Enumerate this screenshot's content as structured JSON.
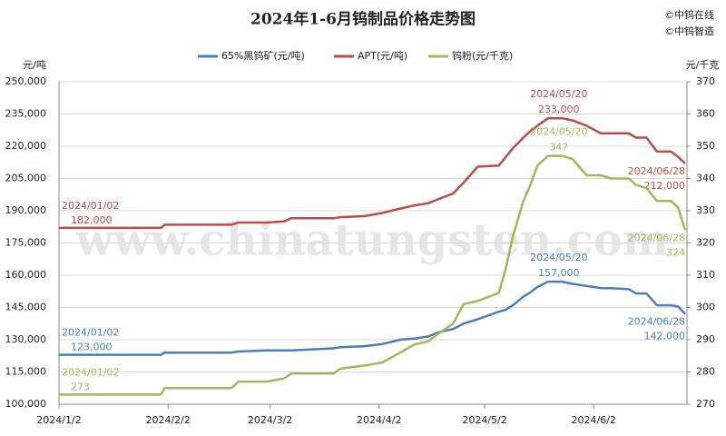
{
  "chart_data": {
    "type": "line",
    "title": "2024年1-6月钨制品价格走势图",
    "credits": [
      "©中钨在线",
      "©中钨智造"
    ],
    "watermark": "www.chinatungsten.com",
    "ylabel": "元/吨",
    "y2label": "元/千克",
    "x": [
      "2024/1/2",
      "2024/1/31",
      "2024/2/1",
      "2024/2/20",
      "2024/2/22",
      "2024/3/1",
      "2024/3/6",
      "2024/3/8",
      "2024/3/20",
      "2024/3/22",
      "2024/3/29",
      "2024/4/3",
      "2024/4/8",
      "2024/4/12",
      "2024/4/16",
      "2024/4/19",
      "2024/4/23",
      "2024/4/26",
      "2024/4/30",
      "2024/5/6",
      "2024/5/8",
      "2024/5/10",
      "2024/5/13",
      "2024/5/15",
      "2024/5/17",
      "2024/5/20",
      "2024/5/24",
      "2024/5/27",
      "2024/5/31",
      "2024/6/4",
      "2024/6/7",
      "2024/6/12",
      "2024/6/14",
      "2024/6/17",
      "2024/6/20",
      "2024/6/24",
      "2024/6/26",
      "2024/6/28"
    ],
    "xlim": [
      "2024/1/2",
      "2024/6/28"
    ],
    "xticks": [
      "2024/1/2",
      "2024/2/2",
      "2024/3/2",
      "2024/4/2",
      "2024/5/2",
      "2024/6/2"
    ],
    "ylim": [
      100000,
      250000
    ],
    "yticks": [
      {
        "value": 100000,
        "label": "100,000"
      },
      {
        "value": 115000,
        "label": "115,000"
      },
      {
        "value": 130000,
        "label": "130,000"
      },
      {
        "value": 145000,
        "label": "145,000"
      },
      {
        "value": 160000,
        "label": "160,000"
      },
      {
        "value": 175000,
        "label": "175,000"
      },
      {
        "value": 190000,
        "label": "190,000"
      },
      {
        "value": 205000,
        "label": "205,000"
      },
      {
        "value": 220000,
        "label": "220,000"
      },
      {
        "value": 235000,
        "label": "235,000"
      },
      {
        "value": 250000,
        "label": "250,000"
      }
    ],
    "y2lim": [
      270,
      370
    ],
    "y2ticks": [
      270,
      280,
      290,
      300,
      310,
      320,
      330,
      340,
      350,
      360,
      370
    ],
    "grid": true,
    "series": [
      {
        "name": "65%黑钨矿(元/吨)",
        "color": "#4a7ebb",
        "values": [
          123000,
          123000,
          124000,
          124000,
          124500,
          125000,
          125000,
          125000,
          126000,
          126500,
          127000,
          128000,
          130000,
          130500,
          131500,
          133500,
          135000,
          137500,
          139500,
          143000,
          144000,
          146000,
          150000,
          152000,
          154500,
          157000,
          157000,
          156000,
          155000,
          154000,
          154000,
          153500,
          151500,
          151500,
          146000,
          146000,
          145500,
          142000
        ],
        "value_labels": [
          "123,000",
          null,
          null,
          null,
          null,
          null,
          null,
          null,
          null,
          null,
          null,
          null,
          null,
          null,
          null,
          null,
          null,
          null,
          null,
          null,
          null,
          null,
          null,
          null,
          null,
          "157,000",
          null,
          null,
          null,
          null,
          null,
          null,
          null,
          null,
          null,
          null,
          null,
          "142,000"
        ],
        "point_labels": [
          "2024/01/02",
          null,
          null,
          null,
          null,
          null,
          null,
          null,
          null,
          null,
          null,
          null,
          null,
          null,
          null,
          null,
          null,
          null,
          null,
          null,
          null,
          null,
          null,
          null,
          null,
          "2024/05/20",
          null,
          null,
          null,
          null,
          null,
          null,
          null,
          null,
          null,
          null,
          null,
          "2024/06/28"
        ]
      },
      {
        "name": "APT(元/吨)",
        "color": "#be4b48",
        "values": [
          182000,
          182000,
          183500,
          183500,
          184500,
          184500,
          185000,
          186500,
          186500,
          187000,
          187500,
          189000,
          191000,
          192500,
          193500,
          195500,
          198000,
          203000,
          210500,
          211000,
          215000,
          219000,
          224000,
          227000,
          229500,
          233000,
          233000,
          232000,
          229500,
          226000,
          226000,
          226000,
          224000,
          224000,
          217500,
          217500,
          215000,
          212000
        ],
        "value_labels": [
          "182,000",
          null,
          null,
          null,
          null,
          null,
          null,
          null,
          null,
          null,
          null,
          null,
          null,
          null,
          null,
          null,
          null,
          null,
          null,
          null,
          null,
          null,
          null,
          null,
          null,
          "233,000",
          null,
          null,
          null,
          null,
          null,
          null,
          null,
          null,
          null,
          null,
          null,
          "212,000"
        ],
        "point_labels": [
          "2024/01/02",
          null,
          null,
          null,
          null,
          null,
          null,
          null,
          null,
          null,
          null,
          null,
          null,
          null,
          null,
          null,
          null,
          null,
          null,
          null,
          null,
          null,
          null,
          null,
          null,
          "2024/05/20",
          null,
          null,
          null,
          null,
          null,
          null,
          null,
          null,
          null,
          null,
          null,
          "2024/06/28"
        ]
      },
      {
        "name": "钨粉(元/千克)",
        "color": "#9bbb59",
        "axis": "y2",
        "values": [
          273,
          273,
          275,
          275,
          277,
          277,
          278,
          279.5,
          279.5,
          281,
          282,
          283,
          286,
          288.5,
          289.5,
          292,
          295,
          301,
          302,
          304.5,
          312,
          322,
          333,
          338,
          344,
          347,
          347,
          346,
          341,
          341,
          340,
          340,
          338,
          337,
          333,
          333,
          331,
          324
        ],
        "value_labels": [
          "273",
          null,
          null,
          null,
          null,
          null,
          null,
          null,
          null,
          null,
          null,
          null,
          null,
          null,
          null,
          null,
          null,
          null,
          null,
          null,
          null,
          null,
          null,
          null,
          null,
          "347",
          null,
          null,
          null,
          null,
          null,
          null,
          null,
          null,
          null,
          null,
          null,
          "324"
        ],
        "point_labels": [
          "2024/01/02",
          null,
          null,
          null,
          null,
          null,
          null,
          null,
          null,
          null,
          null,
          null,
          null,
          null,
          null,
          null,
          null,
          null,
          null,
          null,
          null,
          null,
          null,
          null,
          null,
          "2024/05/20",
          null,
          null,
          null,
          null,
          null,
          null,
          null,
          null,
          null,
          null,
          null,
          "2024/06/28"
        ]
      }
    ]
  }
}
